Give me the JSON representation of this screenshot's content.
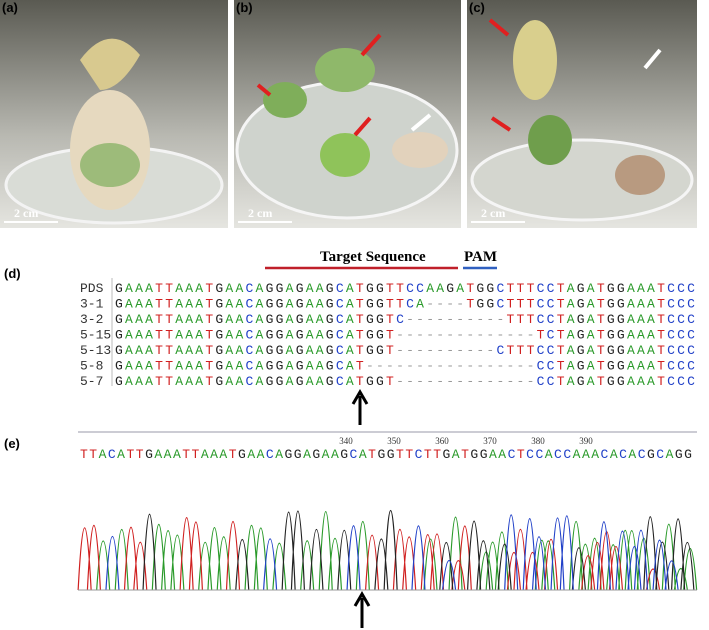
{
  "panels": [
    {
      "label": "(a)",
      "scale": "2 cm"
    },
    {
      "label": "(b)",
      "scale": "2 cm"
    },
    {
      "label": "(c)",
      "scale": "2 cm"
    }
  ],
  "alignment": {
    "label": "(d)",
    "target": "Target Sequence",
    "pam": "PAM",
    "rows": [
      {
        "name": "PDS",
        "seq": "GAAATTAAATGAACAGGAGAAGCATGGTTCCAAGATGGCTTTCCTAGATGGAAATCCC"
      },
      {
        "name": "3-1",
        "seq": "GAAATTAAATGAACAGGAGAAGCATGGTTCA----TGGCTTTCCTAGATGGAAATCCC"
      },
      {
        "name": "3-2",
        "seq": "GAAATTAAATGAACAGGAGAAGCATGGTC----------TTTCCTAGATGGAAATCCC"
      },
      {
        "name": "5-15",
        "seq": "GAAATTAAATGAACAGGAGAAGCATGGT--------------TCTAGATGGAAATCCC"
      },
      {
        "name": "5-13",
        "seq": "GAAATTAAATGAACAGGAGAAGCATGGT----------CTTTCCTAGATGGAAATCCC"
      },
      {
        "name": "5-8",
        "seq": "GAAATTAAATGAACAGGAGAAGCAT-----------------CCTAGATGGAAATCCC"
      },
      {
        "name": "5-7",
        "seq": "GAAATTAAATGAACAGGAGAAGCATGGT--------------CCTAGATGGAAATCCC"
      }
    ]
  },
  "chromatogram": {
    "label": "(e)",
    "positions": [
      340,
      350,
      360,
      370,
      380,
      390
    ],
    "sequence": "TTACATTGAAATTAAATGAACAGGAGAAGCATGGTTCTTGATGGAACTCCACCAAACACACGCAGG"
  }
}
